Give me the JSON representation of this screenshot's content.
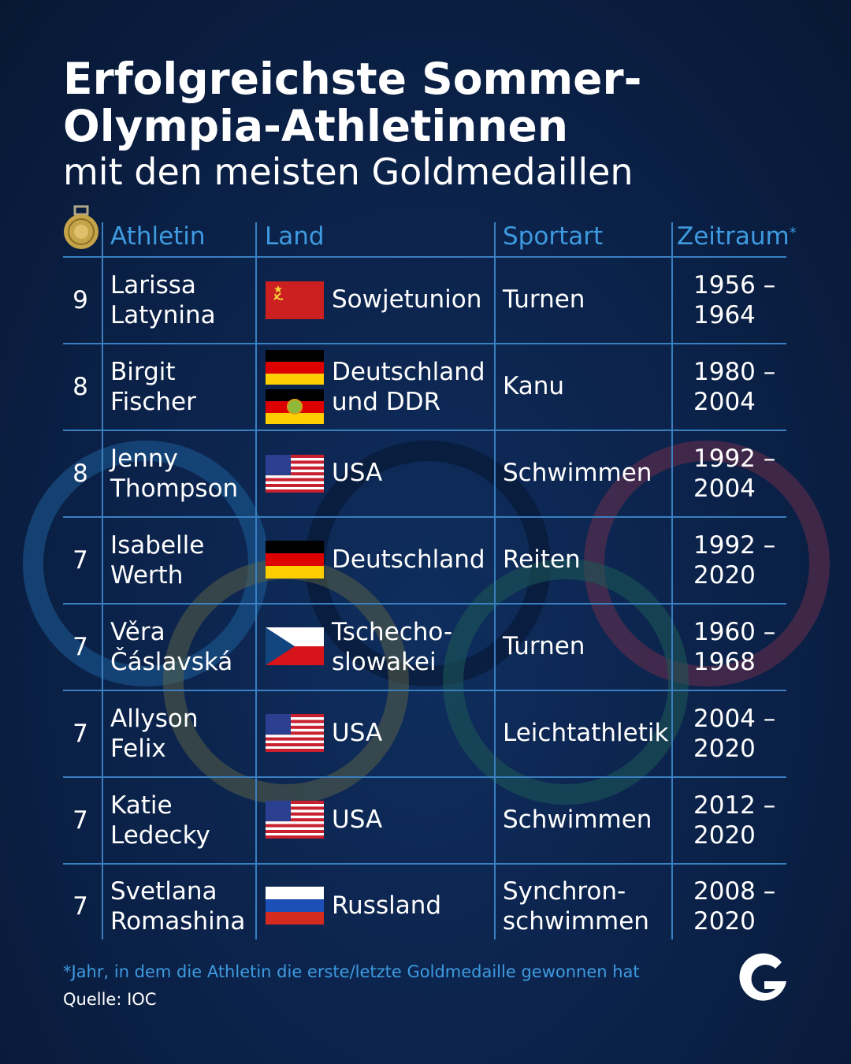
{
  "title_line1": "Erfolgreichste Sommer-",
  "title_line2": "Olympia-Athletinnen",
  "subtitle": "mit den meisten Goldmedaillen",
  "headers": {
    "athlete": "Athletin",
    "country": "Land",
    "sport": "Sportart",
    "period": "Zeitraum",
    "period_mark": "*"
  },
  "colors": {
    "background": "#0b2148",
    "accent": "#3e9be0",
    "grid": "#3a7fc0",
    "text": "#ffffff"
  },
  "icons": {
    "medal": "gold-medal-icon",
    "logo": "g-logo-icon"
  },
  "rows": [
    {
      "medals": "9",
      "name1": "Larissa",
      "name2": "Latynina",
      "country1": "Sowjetunion",
      "country2": "",
      "flags": [
        "soviet-union-flag"
      ],
      "sport1": "Turnen",
      "sport2": "",
      "start": "1956 –",
      "end": "1964"
    },
    {
      "medals": "8",
      "name1": "Birgit",
      "name2": "Fischer",
      "country1": "Deutschland",
      "country2": "und DDR",
      "flags": [
        "germany-flag",
        "gdr-flag"
      ],
      "sport1": "Kanu",
      "sport2": "",
      "start": "1980 –",
      "end": "2004"
    },
    {
      "medals": "8",
      "name1": "Jenny",
      "name2": "Thompson",
      "country1": "USA",
      "country2": "",
      "flags": [
        "usa-flag"
      ],
      "sport1": "Schwimmen",
      "sport2": "",
      "start": "1992 –",
      "end": "2004"
    },
    {
      "medals": "7",
      "name1": "Isabelle",
      "name2": "Werth",
      "country1": "Deutschland",
      "country2": "",
      "flags": [
        "germany-flag"
      ],
      "sport1": "Reiten",
      "sport2": "",
      "start": "1992 –",
      "end": "2020"
    },
    {
      "medals": "7",
      "name1": "Věra",
      "name2": "Čáslavská",
      "country1": "Tschecho-",
      "country2": "slowakei",
      "flags": [
        "czechoslovakia-flag"
      ],
      "sport1": "Turnen",
      "sport2": "",
      "start": "1960 –",
      "end": "1968"
    },
    {
      "medals": "7",
      "name1": "Allyson",
      "name2": "Felix",
      "country1": "USA",
      "country2": "",
      "flags": [
        "usa-flag"
      ],
      "sport1": "Leichtathletik",
      "sport2": "",
      "start": "2004 –",
      "end": "2020"
    },
    {
      "medals": "7",
      "name1": "Katie",
      "name2": "Ledecky",
      "country1": "USA",
      "country2": "",
      "flags": [
        "usa-flag"
      ],
      "sport1": "Schwimmen",
      "sport2": "",
      "start": "2012 –",
      "end": "2020"
    },
    {
      "medals": "7",
      "name1": "Svetlana",
      "name2": "Romashina",
      "country1": "Russland",
      "country2": "",
      "flags": [
        "russia-flag"
      ],
      "sport1": "Synchron-",
      "sport2": "schwimmen",
      "start": "2008 –",
      "end": "2020"
    }
  ],
  "footnote": "*Jahr, in dem die Athletin die erste/letzte Goldmedaille gewonnen hat",
  "source": "Quelle: IOC"
}
